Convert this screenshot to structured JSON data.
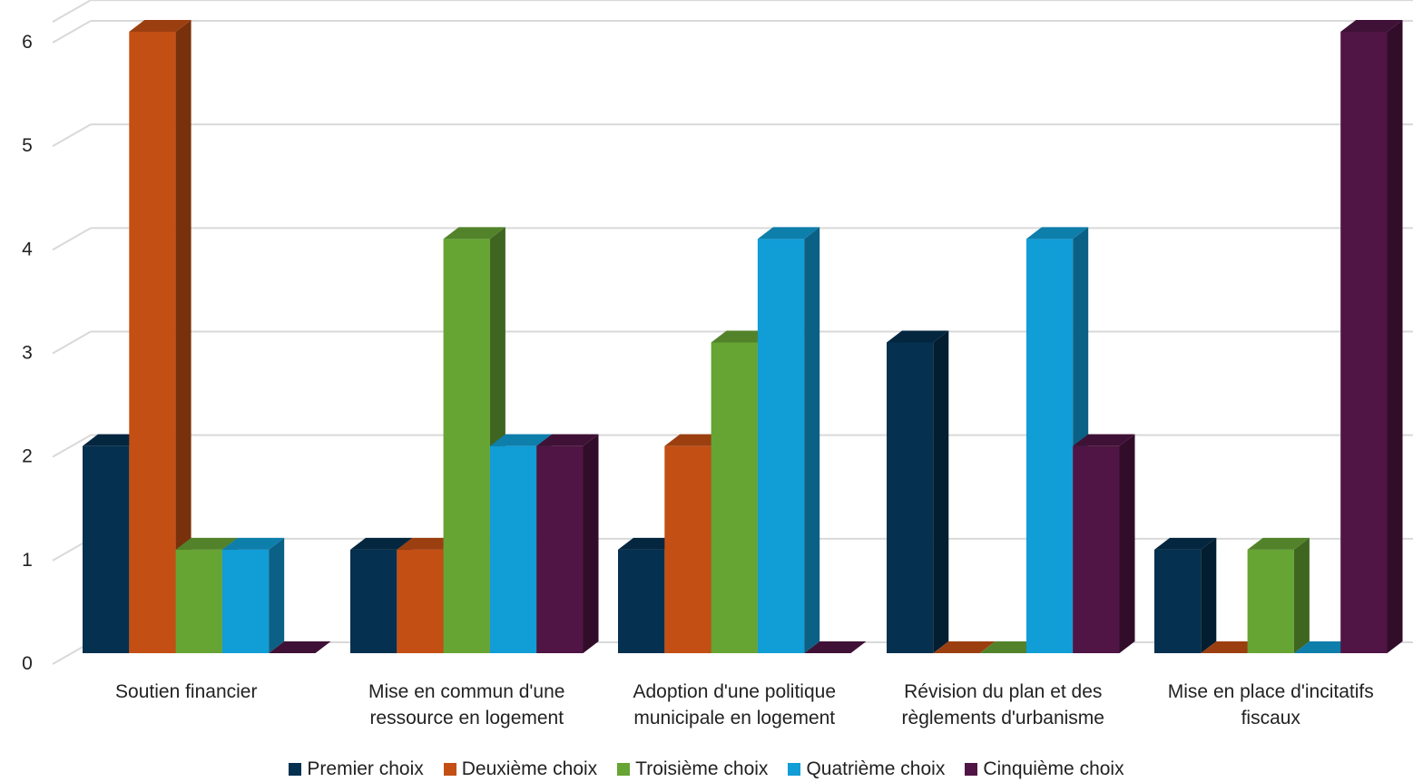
{
  "chart_data": {
    "type": "bar",
    "categories": [
      [
        "Soutien financier"
      ],
      [
        "Mise en commun d'une",
        "ressource en logement"
      ],
      [
        "Adoption d'une politique",
        "municipale en logement"
      ],
      [
        "Révision du plan et des",
        "règlements d'urbanisme"
      ],
      [
        "Mise en place d'incitatifs",
        "fiscaux"
      ]
    ],
    "series": [
      {
        "name": "Premier choix",
        "color": "#05304F",
        "values": [
          2,
          1,
          1,
          3,
          1
        ]
      },
      {
        "name": "Deuxième choix",
        "color": "#C34F14",
        "values": [
          6,
          1,
          2,
          0,
          0
        ]
      },
      {
        "name": "Troisième choix",
        "color": "#66A434",
        "values": [
          1,
          4,
          3,
          0,
          1
        ]
      },
      {
        "name": "Quatrième choix",
        "color": "#119DD6",
        "values": [
          1,
          2,
          4,
          4,
          0
        ]
      },
      {
        "name": "Cinquième choix",
        "color": "#501544",
        "values": [
          0,
          2,
          0,
          2,
          6
        ]
      }
    ],
    "yticks": [
      "0",
      "1",
      "2",
      "3",
      "4",
      "5",
      "6"
    ],
    "ylim": [
      0,
      6
    ],
    "grid": true,
    "legend_position": "bottom",
    "style": "3d-clustered-column"
  }
}
